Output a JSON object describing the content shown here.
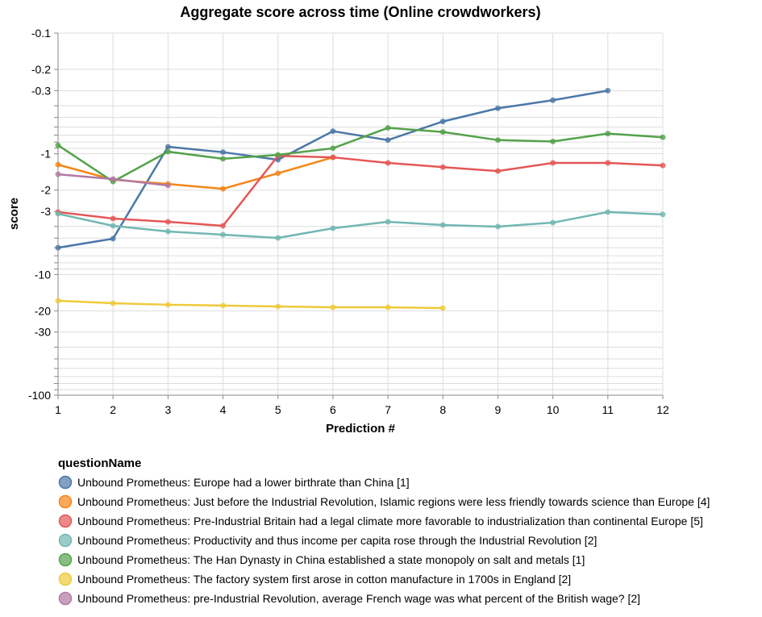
{
  "chart_data": {
    "type": "line",
    "title": "Aggregate score across time (Online crowdworkers)",
    "x_label": "Prediction #",
    "y_label": "score",
    "legend_title": "questionName",
    "x": [
      1,
      2,
      3,
      4,
      5,
      6,
      7,
      8,
      9,
      10,
      11,
      12
    ],
    "xlim": [
      1,
      12
    ],
    "xticks": [
      1,
      2,
      3,
      4,
      5,
      6,
      7,
      8,
      9,
      10,
      11,
      12
    ],
    "ylim": [
      -0.1,
      -100
    ],
    "y_log_scale": true,
    "yticks": [
      -0.1,
      -0.2,
      -0.3,
      -1,
      -2,
      -3,
      -10,
      -20,
      -30,
      -100
    ],
    "y_minor_ticks": [
      -0.4,
      -0.5,
      -0.6,
      -0.7,
      -0.8,
      -0.9,
      -4,
      -5,
      -6,
      -7,
      -8,
      -9,
      -40,
      -50,
      -60,
      -70,
      -80,
      -90
    ],
    "grid": true,
    "series": [
      {
        "name": "Unbound Prometheus: Europe had a lower birthrate than China [1]",
        "color": "#4c78a8",
        "values": [
          -6.0,
          -5.05,
          -0.875,
          -0.97,
          -1.12,
          -0.65,
          -0.77,
          -0.54,
          -0.42,
          -0.36,
          -0.3,
          null
        ]
      },
      {
        "name": "Unbound Prometheus: Just before the Industrial Revolution, Islamic regions were less friendly towards science than Europe [4]",
        "color": "#f58518",
        "values": [
          -1.23,
          -1.64,
          -1.78,
          -1.95,
          -1.45,
          -1.07,
          null,
          null,
          null,
          null,
          null,
          null
        ]
      },
      {
        "name": "Unbound Prometheus: Pre-Industrial Britain had a legal climate more favorable to industrialization than continental Europe [5]",
        "color": "#e45756",
        "values": [
          -3.04,
          -3.44,
          -3.66,
          -3.95,
          -1.04,
          -1.07,
          -1.19,
          -1.29,
          -1.39,
          -1.19,
          -1.19,
          -1.25
        ]
      },
      {
        "name": "Unbound Prometheus: Productivity and thus income per capita rose through the Industrial Revolution [2]",
        "color": "#72b7b2",
        "values": [
          -3.14,
          -3.95,
          -4.4,
          -4.68,
          -4.98,
          -4.14,
          -3.66,
          -3.89,
          -4.01,
          -3.72,
          -3.04,
          -3.18
        ]
      },
      {
        "name": "Unbound Prometheus: The Han Dynasty in China established a state monopoly on salt and metals [1]",
        "color": "#54a24b",
        "values": [
          -0.85,
          -1.7,
          -0.96,
          -1.1,
          -1.02,
          -0.9,
          -0.61,
          -0.66,
          -0.77,
          -0.79,
          -0.68,
          -0.73
        ]
      },
      {
        "name": "Unbound Prometheus: The factory system first arose in cotton manufacture in 1700s in England [2]",
        "color": "#eeca3b",
        "values": [
          -16.5,
          -17.3,
          -17.8,
          -18.1,
          -18.4,
          -18.7,
          -18.7,
          -19.0,
          null,
          null,
          null,
          null
        ]
      },
      {
        "name": "Unbound Prometheus: pre-Industrial Revolution, average French wage was what percent of the British wage? [2]",
        "color": "#b279a2",
        "values": [
          -1.48,
          -1.62,
          -1.83,
          null,
          null,
          null,
          null,
          null,
          null,
          null,
          null,
          null
        ]
      }
    ]
  }
}
